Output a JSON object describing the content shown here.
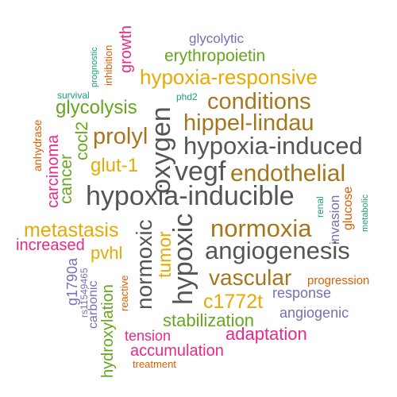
{
  "palette": {
    "purple": "#7570b3",
    "green": "#66a61e",
    "orange": "#d95f02",
    "magenta": "#e7298a",
    "gold": "#e6ab02",
    "brown": "#a6761d",
    "gray": "#555555",
    "teal": "#1b9e77"
  },
  "words": [
    {
      "text": "glycolytic",
      "color": "purple"
    },
    {
      "text": "prognostic",
      "color": "teal"
    },
    {
      "text": "inhibition",
      "color": "orange"
    },
    {
      "text": "growth",
      "color": "magenta"
    },
    {
      "text": "erythropoietin",
      "color": "green"
    },
    {
      "text": "hypoxia-responsive",
      "color": "gold"
    },
    {
      "text": "survival",
      "color": "teal"
    },
    {
      "text": "phd2",
      "color": "teal"
    },
    {
      "text": "conditions",
      "color": "brown"
    },
    {
      "text": "glycolysis",
      "color": "green"
    },
    {
      "text": "oxygen",
      "color": "gray"
    },
    {
      "text": "hippel-lindau",
      "color": "brown"
    },
    {
      "text": "anhydrase",
      "color": "orange"
    },
    {
      "text": "carcinoma",
      "color": "magenta"
    },
    {
      "text": "cancer",
      "color": "green"
    },
    {
      "text": "cocl2",
      "color": "green"
    },
    {
      "text": "prolyl",
      "color": "brown"
    },
    {
      "text": "hypoxia-induced",
      "color": "gray"
    },
    {
      "text": "glut-1",
      "color": "gold"
    },
    {
      "text": "vegf",
      "color": "gray"
    },
    {
      "text": "endothelial",
      "color": "brown"
    },
    {
      "text": "hypoxia-inducible",
      "color": "gray"
    },
    {
      "text": "renal",
      "color": "teal"
    },
    {
      "text": "glucose",
      "color": "orange"
    },
    {
      "text": "invasion",
      "color": "purple"
    },
    {
      "text": "metabolic",
      "color": "teal"
    },
    {
      "text": "metastasis",
      "color": "gold"
    },
    {
      "text": "normoxic",
      "color": "gray"
    },
    {
      "text": "tumor",
      "color": "gold"
    },
    {
      "text": "hypoxic",
      "color": "gray"
    },
    {
      "text": "normoxia",
      "color": "brown"
    },
    {
      "text": "increased",
      "color": "magenta"
    },
    {
      "text": "pvhl",
      "color": "gold"
    },
    {
      "text": "angiogenesis",
      "color": "gray"
    },
    {
      "text": "g1790a",
      "color": "purple"
    },
    {
      "text": "vascular",
      "color": "brown"
    },
    {
      "text": "rs11549465",
      "color": "purple"
    },
    {
      "text": "carbonic",
      "color": "purple"
    },
    {
      "text": "reactive",
      "color": "orange"
    },
    {
      "text": "hydroxylation",
      "color": "green"
    },
    {
      "text": "progression",
      "color": "orange"
    },
    {
      "text": "c1772t",
      "color": "gold"
    },
    {
      "text": "response",
      "color": "purple"
    },
    {
      "text": "angiogenic",
      "color": "purple"
    },
    {
      "text": "stabilization",
      "color": "green"
    },
    {
      "text": "tension",
      "color": "magenta"
    },
    {
      "text": "adaptation",
      "color": "magenta"
    },
    {
      "text": "accumulation",
      "color": "magenta"
    },
    {
      "text": "treatment",
      "color": "orange"
    }
  ]
}
